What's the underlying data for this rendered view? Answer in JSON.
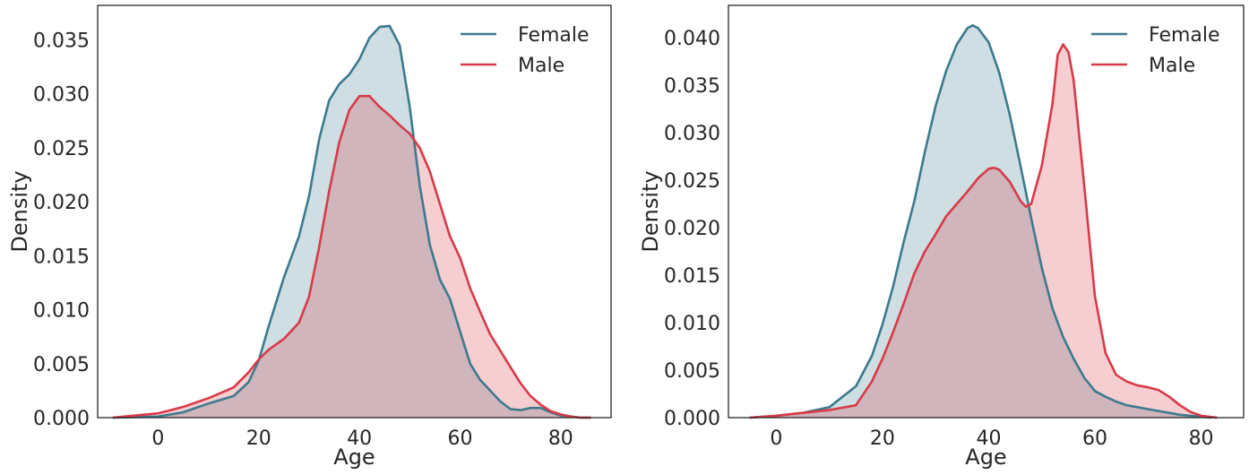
{
  "chart_data": [
    {
      "type": "area",
      "xlabel": "Age",
      "ylabel": "Density",
      "xlim": [
        -12,
        90
      ],
      "ylim": [
        0,
        0.0382
      ],
      "xticks": [
        0,
        20,
        40,
        60,
        80
      ],
      "xtick_labels": [
        "0",
        "20",
        "40",
        "60",
        "80"
      ],
      "yticks": [
        0,
        0.005,
        0.01,
        0.015,
        0.02,
        0.025,
        0.03,
        0.035
      ],
      "ytick_labels": [
        "0.000",
        "0.005",
        "0.010",
        "0.015",
        "0.020",
        "0.025",
        "0.030",
        "0.035"
      ],
      "legend_position": "top-right",
      "series": [
        {
          "name": "Female",
          "color": "#3d7a8e",
          "fill": "#cfdde2",
          "x": [
            -9,
            0,
            5,
            10,
            15,
            18,
            20,
            22,
            25,
            28,
            30,
            32,
            34,
            36,
            38,
            40,
            42,
            44,
            46,
            48,
            50,
            52,
            54,
            56,
            58,
            60,
            62,
            64,
            66,
            68,
            70,
            72,
            74,
            76,
            78,
            80,
            82,
            84,
            86
          ],
          "y": [
            0,
            0.0001,
            0.0005,
            0.0013,
            0.002,
            0.0033,
            0.0053,
            0.0085,
            0.013,
            0.0168,
            0.0205,
            0.0258,
            0.0294,
            0.0309,
            0.0318,
            0.0332,
            0.0352,
            0.0362,
            0.0363,
            0.0345,
            0.0288,
            0.0215,
            0.016,
            0.0128,
            0.011,
            0.008,
            0.005,
            0.0035,
            0.0025,
            0.0015,
            0.0008,
            0.0007,
            0.0009,
            0.0009,
            0.0005,
            0.0002,
            0.0001,
            0,
            0
          ]
        },
        {
          "name": "Male",
          "color": "#d83a48",
          "fill": "#f5c8cd",
          "x": [
            -9,
            0,
            5,
            10,
            15,
            18,
            20,
            22,
            25,
            28,
            30,
            32,
            34,
            36,
            38,
            40,
            42,
            44,
            46,
            48,
            50,
            52,
            54,
            56,
            58,
            60,
            62,
            64,
            66,
            68,
            70,
            72,
            74,
            76,
            78,
            80,
            82,
            84,
            86
          ],
          "y": [
            0,
            0.0004,
            0.001,
            0.0018,
            0.0028,
            0.0042,
            0.0054,
            0.0063,
            0.0073,
            0.0088,
            0.0112,
            0.0158,
            0.021,
            0.0255,
            0.0285,
            0.0298,
            0.0298,
            0.0288,
            0.028,
            0.0271,
            0.0263,
            0.025,
            0.0228,
            0.0198,
            0.0168,
            0.0148,
            0.012,
            0.0098,
            0.0077,
            0.0062,
            0.0047,
            0.0032,
            0.002,
            0.0012,
            0.0006,
            0.0003,
            0.0001,
            0,
            0
          ]
        }
      ]
    },
    {
      "type": "area",
      "xlabel": "Age",
      "ylabel": "Density",
      "xlim": [
        -9,
        88
      ],
      "ylim": [
        0,
        0.0434
      ],
      "xticks": [
        0,
        20,
        40,
        60,
        80
      ],
      "xtick_labels": [
        "0",
        "20",
        "40",
        "60",
        "80"
      ],
      "yticks": [
        0,
        0.005,
        0.01,
        0.015,
        0.02,
        0.025,
        0.03,
        0.035,
        0.04
      ],
      "ytick_labels": [
        "0.000",
        "0.005",
        "0.010",
        "0.015",
        "0.020",
        "0.025",
        "0.030",
        "0.035",
        "0.040"
      ],
      "legend_position": "top-right",
      "series": [
        {
          "name": "Female",
          "color": "#3d7a8e",
          "fill": "#cfdde2",
          "x": [
            -5,
            0,
            5,
            10,
            15,
            18,
            20,
            22,
            24,
            26,
            28,
            30,
            32,
            34,
            36,
            37,
            38,
            40,
            42,
            44,
            46,
            48,
            50,
            52,
            54,
            56,
            58,
            60,
            62,
            64,
            66,
            68,
            70,
            72,
            74,
            76,
            78,
            80,
            82
          ],
          "y": [
            0,
            0.0002,
            0.0005,
            0.0011,
            0.0033,
            0.0065,
            0.0098,
            0.0138,
            0.0185,
            0.0228,
            0.028,
            0.0328,
            0.0365,
            0.0393,
            0.041,
            0.0413,
            0.041,
            0.0395,
            0.0363,
            0.0318,
            0.0265,
            0.021,
            0.0158,
            0.0115,
            0.0085,
            0.0062,
            0.0042,
            0.0028,
            0.0022,
            0.0017,
            0.0013,
            0.0011,
            0.0009,
            0.0007,
            0.0005,
            0.0003,
            0.0002,
            0.0001,
            0
          ]
        },
        {
          "name": "Male",
          "color": "#d83a48",
          "fill": "#f5c8cd",
          "x": [
            -5,
            0,
            5,
            10,
            15,
            18,
            20,
            22,
            24,
            26,
            28,
            30,
            32,
            34,
            36,
            38,
            40,
            41,
            42,
            44,
            46,
            47,
            48,
            50,
            52,
            53,
            54,
            55,
            56,
            58,
            60,
            62,
            64,
            66,
            68,
            70,
            72,
            74,
            76,
            78,
            80,
            83
          ],
          "y": [
            0,
            0.0002,
            0.0005,
            0.0008,
            0.0013,
            0.0038,
            0.0062,
            0.009,
            0.012,
            0.0152,
            0.0175,
            0.0193,
            0.0212,
            0.0225,
            0.0238,
            0.0252,
            0.0262,
            0.0263,
            0.0261,
            0.0248,
            0.0228,
            0.0222,
            0.0225,
            0.0265,
            0.033,
            0.0382,
            0.0393,
            0.0385,
            0.0355,
            0.0243,
            0.0128,
            0.0068,
            0.0045,
            0.0038,
            0.0034,
            0.0032,
            0.0029,
            0.0022,
            0.0013,
            0.0006,
            0.0002,
            0
          ]
        }
      ]
    }
  ]
}
